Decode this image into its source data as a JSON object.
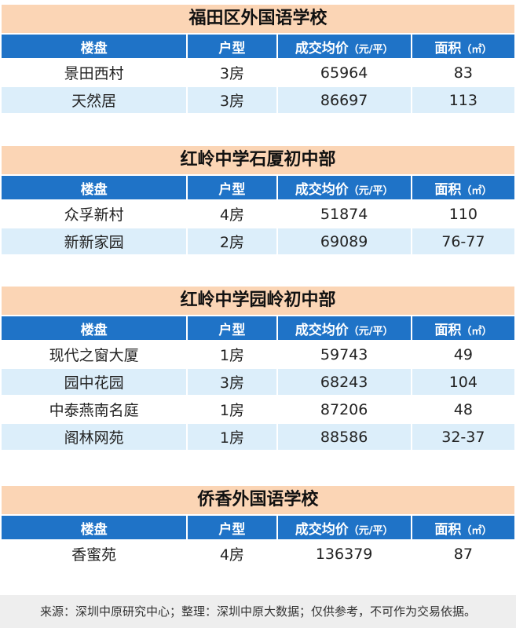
{
  "headers": {
    "col1": "楼盘",
    "col2": "户型",
    "col3_main": "成交均价",
    "col3_unit": "（元/平）",
    "col4_main": "面积",
    "col4_unit": "（㎡）"
  },
  "sections": [
    {
      "title": "福田区外国语学校",
      "rows": [
        {
          "name": "景田西村",
          "type": "3房",
          "price": "65964",
          "area": "83"
        },
        {
          "name": "天然居",
          "type": "3房",
          "price": "86697",
          "area": "113"
        }
      ]
    },
    {
      "title": "红岭中学石厦初中部",
      "rows": [
        {
          "name": "众孚新村",
          "type": "4房",
          "price": "51874",
          "area": "110"
        },
        {
          "name": "新新家园",
          "type": "2房",
          "price": "69089",
          "area": "76-77"
        }
      ]
    },
    {
      "title": "红岭中学园岭初中部",
      "rows": [
        {
          "name": "现代之窗大厦",
          "type": "1房",
          "price": "59743",
          "area": "49"
        },
        {
          "name": "园中花园",
          "type": "3房",
          "price": "68243",
          "area": "104"
        },
        {
          "name": "中泰燕南名庭",
          "type": "1房",
          "price": "87206",
          "area": "48"
        },
        {
          "name": "阁林网苑",
          "type": "1房",
          "price": "88586",
          "area": "32-37"
        }
      ]
    },
    {
      "title": "侨香外国语学校",
      "rows": [
        {
          "name": "香蜜苑",
          "type": "4房",
          "price": "136379",
          "area": "87"
        }
      ]
    }
  ],
  "footer": "来源：深圳中原研究中心；整理：深圳中原大数据；仅供参考，不可作为交易依据。"
}
